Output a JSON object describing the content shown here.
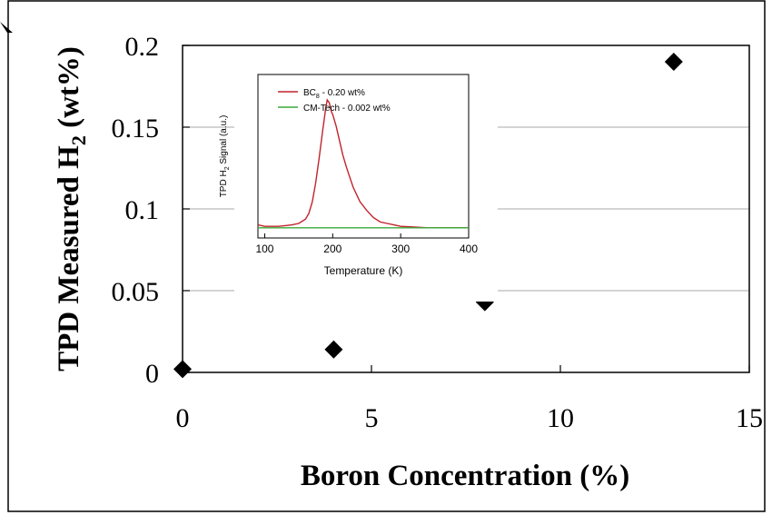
{
  "chart_data": [
    {
      "type": "scatter",
      "title": "",
      "xlabel": "Boron Concentration (%)",
      "ylabel_parts": {
        "pre": "TPD Measured H",
        "sub": "2",
        "post": " (wt%)"
      },
      "xlim": [
        0,
        15
      ],
      "ylim": [
        0,
        0.2
      ],
      "xticks": [
        "0",
        "5",
        "10",
        "15"
      ],
      "xtick_values": [
        0,
        5,
        10,
        15
      ],
      "yticks": [
        "0",
        "0.05",
        "0.1",
        "0.15",
        "0.2"
      ],
      "ytick_values": [
        0,
        0.05,
        0.1,
        0.15,
        0.2
      ],
      "grid": "horizontal",
      "marker": "diamond",
      "marker_color": "#000000",
      "points": [
        {
          "x": 0,
          "y": 0.002
        },
        {
          "x": 4,
          "y": 0.014
        },
        {
          "x": 8,
          "y": 0.043
        },
        {
          "x": 13,
          "y": 0.19
        }
      ]
    },
    {
      "type": "line",
      "title": "",
      "xlabel": "Temperature (K)",
      "ylabel_parts": {
        "pre": "TPD H",
        "sub": "2",
        "post": " Signal (a.u.)"
      },
      "xlim": [
        90,
        400
      ],
      "ylim": [
        0,
        1
      ],
      "xticks": [
        "100",
        "200",
        "300",
        "400"
      ],
      "xtick_values": [
        100,
        200,
        300,
        400
      ],
      "legend": "top-right",
      "series": [
        {
          "name_parts": {
            "pre": "BC",
            "sub": "8",
            "post": " - 0.20 wt%"
          },
          "color": "#c0242a",
          "x": [
            90,
            100,
            110,
            120,
            130,
            140,
            150,
            160,
            165,
            170,
            175,
            180,
            185,
            190,
            192,
            195,
            198,
            200,
            205,
            210,
            215,
            220,
            225,
            230,
            240,
            250,
            260,
            270,
            280,
            290,
            300,
            320,
            340,
            360,
            380,
            400
          ],
          "y": [
            0.04,
            0.03,
            0.03,
            0.03,
            0.035,
            0.04,
            0.05,
            0.08,
            0.12,
            0.2,
            0.33,
            0.5,
            0.68,
            0.85,
            0.9,
            0.88,
            0.82,
            0.8,
            0.72,
            0.62,
            0.52,
            0.44,
            0.37,
            0.3,
            0.2,
            0.14,
            0.09,
            0.06,
            0.05,
            0.04,
            0.03,
            0.025,
            0.02,
            0.02,
            0.02,
            0.02
          ]
        },
        {
          "name_parts": {
            "pre": "CM-Tech - 0.002 wt%",
            "sub": "",
            "post": ""
          },
          "color": "#3aa83a",
          "x": [
            90,
            400
          ],
          "y": [
            0.02,
            0.02
          ]
        }
      ]
    }
  ]
}
